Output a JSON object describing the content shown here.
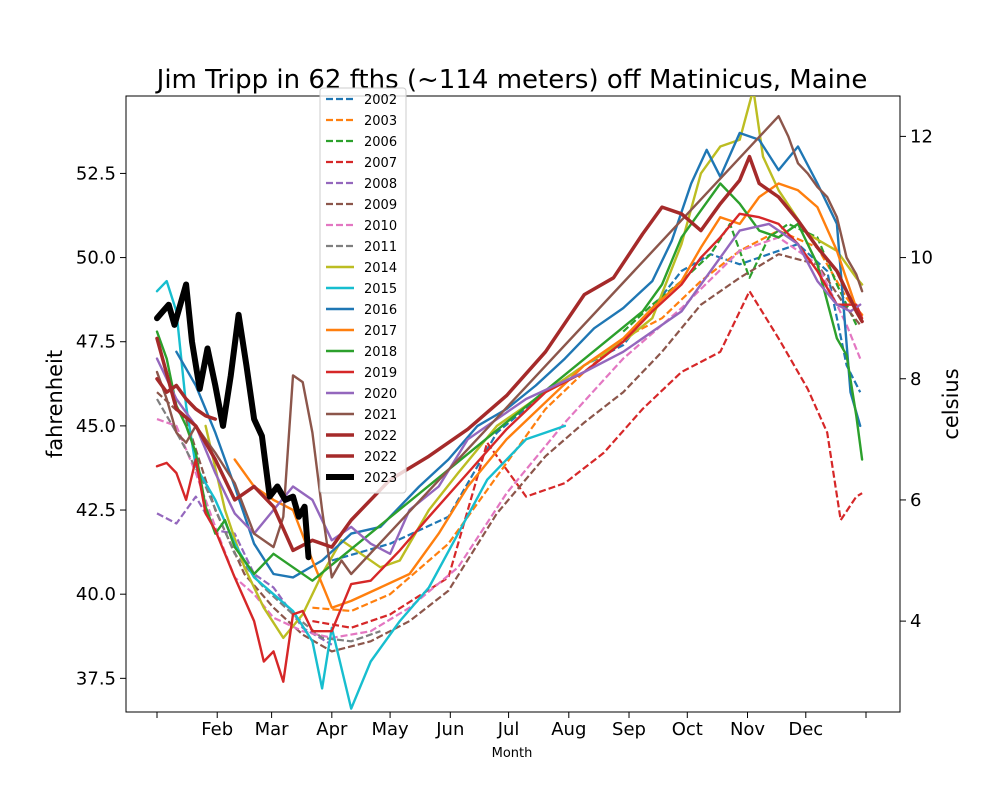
{
  "chart_data": {
    "type": "line",
    "title": "Jim Tripp in 62 fths (~114 meters) off Matinicus, Maine",
    "xlabel": "Month",
    "ylabel": "fahrenheit",
    "y2label": "celsius",
    "xlim": [
      0,
      365
    ],
    "ylim": [
      36.5,
      54.8
    ],
    "x_ticks": [
      {
        "pos": 0,
        "label": ""
      },
      {
        "pos": 31,
        "label": "Feb"
      },
      {
        "pos": 59,
        "label": "Mar"
      },
      {
        "pos": 90,
        "label": "Apr"
      },
      {
        "pos": 120,
        "label": "May"
      },
      {
        "pos": 151,
        "label": "Jun"
      },
      {
        "pos": 181,
        "label": "Jul"
      },
      {
        "pos": 212,
        "label": "Aug"
      },
      {
        "pos": 243,
        "label": "Sep"
      },
      {
        "pos": 273,
        "label": "Oct"
      },
      {
        "pos": 304,
        "label": "Nov"
      },
      {
        "pos": 334,
        "label": "Dec"
      },
      {
        "pos": 365,
        "label": ""
      }
    ],
    "y_ticks": [
      37.5,
      40.0,
      42.5,
      45.0,
      47.5,
      50.0,
      52.5
    ],
    "y2_ticks": [
      4,
      6,
      8,
      10,
      12
    ],
    "legend_position": "top-left",
    "series": [
      {
        "name": "2002",
        "style": "dashed",
        "color": "#1f77b4",
        "width": 2.2,
        "x": [
          90,
          120,
          150,
          175,
          200,
          220,
          240,
          255,
          270,
          285,
          300,
          315,
          330,
          345,
          355,
          362
        ],
        "y": [
          41.0,
          41.5,
          42.3,
          44.8,
          46.0,
          46.8,
          47.4,
          48.5,
          49.6,
          50.1,
          49.8,
          50.1,
          50.4,
          49.6,
          46.8,
          46.0
        ]
      },
      {
        "name": "2003",
        "style": "dashed",
        "color": "#ff7f0e",
        "width": 2.2,
        "x": [
          80,
          100,
          120,
          150,
          175,
          200,
          220,
          240,
          260,
          280,
          300,
          320,
          340,
          355,
          362
        ],
        "y": [
          39.6,
          39.5,
          40.0,
          41.5,
          43.5,
          45.5,
          46.6,
          47.6,
          48.2,
          49.3,
          50.2,
          50.8,
          50.3,
          48.8,
          48.3
        ]
      },
      {
        "name": "2006",
        "style": "dashed",
        "color": "#2ca02c",
        "width": 2.2,
        "x": [
          240,
          255,
          270,
          285,
          295,
          305,
          315,
          325,
          340,
          350,
          360
        ],
        "y": [
          47.8,
          48.6,
          49.3,
          50.1,
          51.0,
          49.4,
          50.6,
          51.0,
          50.6,
          49.2,
          48.0
        ]
      },
      {
        "name": "2007",
        "style": "dashed",
        "color": "#d62728",
        "width": 2.2,
        "x": [
          80,
          100,
          120,
          150,
          170,
          190,
          210,
          230,
          250,
          270,
          290,
          305,
          320,
          335,
          345,
          352,
          360,
          363
        ],
        "y": [
          39.2,
          39.0,
          39.4,
          40.5,
          44.5,
          42.9,
          43.3,
          44.2,
          45.5,
          46.6,
          47.2,
          49.0,
          47.6,
          46.1,
          44.8,
          42.2,
          42.9,
          43.0
        ]
      },
      {
        "name": "2008",
        "style": "dashed",
        "color": "#9467bd",
        "width": 2.2,
        "x": [
          0,
          10,
          20,
          30,
          40,
          50,
          60,
          75,
          90
        ],
        "y": [
          42.4,
          42.1,
          42.9,
          41.9,
          41.8,
          40.6,
          40.2,
          39.0,
          38.5
        ]
      },
      {
        "name": "2009",
        "style": "dashed",
        "color": "#8c564b",
        "width": 2.2,
        "x": [
          0,
          15,
          30,
          45,
          60,
          75,
          90,
          110,
          130,
          150,
          175,
          200,
          220,
          240,
          260,
          280,
          300,
          320,
          340,
          355,
          362
        ],
        "y": [
          46.0,
          45.2,
          42.5,
          40.6,
          39.6,
          38.8,
          38.3,
          38.6,
          39.2,
          40.1,
          42.4,
          44.1,
          45.1,
          46.0,
          47.2,
          48.6,
          49.4,
          50.1,
          49.8,
          48.5,
          48.0
        ]
      },
      {
        "name": "2010",
        "style": "dashed",
        "color": "#e377c2",
        "width": 2.2,
        "x": [
          0,
          10,
          20,
          30,
          40,
          50,
          60,
          75,
          90,
          110,
          130,
          155,
          180,
          210,
          240,
          270,
          300,
          320,
          340,
          355,
          362
        ],
        "y": [
          45.2,
          45.0,
          43.6,
          42.0,
          40.5,
          40.0,
          39.3,
          38.9,
          38.7,
          38.9,
          39.6,
          40.8,
          43.0,
          45.1,
          47.0,
          48.5,
          50.2,
          50.6,
          49.8,
          48.0,
          47.0
        ]
      },
      {
        "name": "2011",
        "style": "dashed",
        "color": "#7f7f7f",
        "width": 2.2,
        "x": [
          0,
          12,
          25,
          40,
          55,
          70,
          85,
          100,
          115
        ],
        "y": [
          45.8,
          44.6,
          43.2,
          41.2,
          40.2,
          39.4,
          38.7,
          38.6,
          38.9
        ]
      },
      {
        "name": "2014",
        "style": "solid",
        "color": "#bcbd22",
        "width": 2.4,
        "x": [
          25,
          35,
          45,
          55,
          65,
          75,
          85,
          95,
          105,
          115,
          125,
          140,
          155,
          175,
          200,
          220,
          240,
          255,
          270,
          280,
          290,
          300,
          307,
          312,
          320,
          335,
          350,
          360,
          363
        ],
        "y": [
          45.0,
          42.5,
          40.8,
          39.6,
          38.7,
          39.4,
          40.6,
          41.6,
          41.2,
          40.8,
          41.0,
          42.5,
          43.6,
          45.0,
          46.0,
          46.8,
          47.5,
          48.2,
          50.4,
          52.5,
          53.3,
          53.5,
          55.0,
          53.0,
          52.0,
          50.7,
          50.2,
          49.4,
          49.2
        ]
      },
      {
        "name": "2015",
        "style": "solid",
        "color": "#17becf",
        "width": 2.4,
        "x": [
          0,
          5,
          10,
          15,
          20,
          30,
          40,
          50,
          60,
          70,
          80,
          85,
          90,
          100,
          110,
          125,
          140,
          155,
          170,
          190,
          200,
          210
        ],
        "y": [
          49.0,
          49.3,
          48.4,
          45.6,
          43.8,
          42.8,
          41.5,
          40.5,
          40.0,
          39.5,
          38.6,
          37.2,
          39.0,
          36.6,
          38.0,
          39.2,
          40.2,
          41.8,
          43.4,
          44.6,
          44.8,
          45.0
        ]
      },
      {
        "name": "2016",
        "style": "solid",
        "color": "#1f77b4",
        "width": 2.4,
        "x": [
          10,
          20,
          30,
          40,
          50,
          60,
          70,
          85,
          100,
          115,
          135,
          150,
          165,
          180,
          195,
          210,
          225,
          240,
          255,
          265,
          275,
          283,
          290,
          300,
          310,
          320,
          330,
          340,
          350,
          357,
          362
        ],
        "y": [
          47.2,
          46.2,
          44.8,
          43.2,
          41.5,
          40.6,
          40.5,
          41.0,
          41.8,
          42.0,
          43.2,
          44.0,
          45.0,
          45.5,
          46.2,
          47.0,
          47.9,
          48.5,
          49.3,
          50.5,
          52.2,
          53.2,
          52.4,
          53.7,
          53.5,
          52.6,
          53.3,
          52.2,
          51.0,
          46.0,
          45.0
        ]
      },
      {
        "name": "2017",
        "style": "solid",
        "color": "#ff7f0e",
        "width": 2.4,
        "x": [
          40,
          50,
          60,
          70,
          80,
          90,
          100,
          115,
          130,
          145,
          160,
          180,
          200,
          220,
          240,
          255,
          270,
          280,
          290,
          300,
          310,
          320,
          330,
          340,
          350,
          360,
          363
        ],
        "y": [
          44.0,
          43.2,
          42.8,
          42.5,
          41.0,
          39.6,
          39.8,
          40.2,
          40.6,
          41.8,
          43.2,
          44.6,
          45.7,
          46.8,
          47.6,
          48.5,
          49.3,
          50.3,
          51.2,
          51.0,
          51.8,
          52.2,
          52.0,
          51.5,
          50.2,
          48.5,
          48.3
        ]
      },
      {
        "name": "2018",
        "style": "solid",
        "color": "#2ca02c",
        "width": 2.4,
        "x": [
          0,
          5,
          10,
          15,
          20,
          25,
          30,
          35,
          40,
          50,
          60,
          70,
          80,
          250,
          260,
          270,
          280,
          290,
          300,
          310,
          320,
          330,
          340,
          350,
          355,
          360,
          363
        ],
        "y": [
          47.8,
          47.0,
          45.6,
          45.0,
          44.2,
          42.6,
          41.8,
          42.2,
          41.4,
          40.6,
          41.2,
          40.8,
          40.4,
          48.4,
          49.2,
          50.6,
          51.4,
          52.2,
          51.6,
          50.8,
          50.6,
          51.0,
          49.8,
          47.6,
          47.1,
          45.3,
          44.0
        ]
      },
      {
        "name": "2019",
        "style": "solid",
        "color": "#d62728",
        "width": 2.4,
        "x": [
          0,
          5,
          10,
          15,
          20,
          25,
          30,
          35,
          40,
          50,
          55,
          60,
          65,
          70,
          75,
          80,
          90,
          100,
          110,
          125,
          140,
          160,
          180,
          200,
          220,
          240,
          255,
          270,
          280,
          290,
          300,
          310,
          320,
          330,
          340,
          350,
          360,
          363
        ],
        "y": [
          43.8,
          43.9,
          43.6,
          42.8,
          44.0,
          42.4,
          41.9,
          41.2,
          40.5,
          39.2,
          38.0,
          38.3,
          37.4,
          39.4,
          39.5,
          38.9,
          38.9,
          40.3,
          40.4,
          41.3,
          42.3,
          43.6,
          44.9,
          46.0,
          46.6,
          47.5,
          48.4,
          49.2,
          50.0,
          50.6,
          51.3,
          51.2,
          51.0,
          50.4,
          49.6,
          48.6,
          48.6,
          48.2
        ]
      },
      {
        "name": "2020",
        "style": "solid",
        "color": "#9467bd",
        "width": 2.4,
        "x": [
          0,
          10,
          20,
          30,
          40,
          50,
          60,
          70,
          80,
          90,
          100,
          110,
          120,
          130,
          145,
          160,
          175,
          190,
          205,
          220,
          240,
          255,
          270,
          285,
          300,
          315,
          330,
          340,
          350,
          357,
          362
        ],
        "y": [
          47.0,
          45.8,
          45.0,
          43.6,
          42.4,
          41.8,
          42.5,
          43.2,
          42.8,
          41.6,
          42.0,
          41.5,
          41.2,
          42.5,
          43.2,
          44.6,
          45.2,
          45.8,
          46.2,
          46.6,
          47.2,
          47.8,
          48.4,
          49.6,
          50.8,
          51.0,
          50.4,
          49.3,
          48.6,
          48.4,
          48.6
        ]
      },
      {
        "name": "2021",
        "style": "solid",
        "color": "#8c564b",
        "width": 2.4,
        "x": [
          0,
          5,
          10,
          15,
          20,
          30,
          40,
          50,
          60,
          65,
          70,
          75,
          80,
          85,
          90,
          95,
          100,
          320,
          325,
          330,
          335,
          340,
          345,
          350,
          355,
          360,
          363
        ],
        "y": [
          46.6,
          45.8,
          44.8,
          44.5,
          45.0,
          44.2,
          43.3,
          41.8,
          41.4,
          42.3,
          46.5,
          46.3,
          44.8,
          42.5,
          40.5,
          41.0,
          40.6,
          54.2,
          53.6,
          52.8,
          52.5,
          52.1,
          51.8,
          51.2,
          50.0,
          49.5,
          49.0
        ]
      },
      {
        "name": "2022",
        "style": "solid",
        "color": "#a52a2a",
        "width": 3.5,
        "x": [
          0,
          10,
          20,
          30,
          40,
          50,
          60,
          70,
          80,
          90,
          100,
          120,
          140,
          160,
          180,
          200,
          220,
          235,
          250,
          260,
          270,
          280,
          290,
          300,
          305,
          310,
          320,
          330,
          340,
          350,
          360,
          363
        ],
        "y": [
          47.6,
          45.5,
          45.0,
          44.0,
          42.8,
          43.2,
          42.6,
          41.3,
          41.6,
          41.4,
          42.2,
          43.4,
          44.1,
          44.9,
          45.9,
          47.2,
          48.9,
          49.4,
          50.7,
          51.5,
          51.3,
          50.8,
          51.6,
          52.3,
          53.0,
          52.2,
          51.8,
          51.1,
          50.3,
          49.6,
          48.4,
          48.1
        ]
      },
      {
        "name": "2022",
        "style": "solid",
        "color": "#a52a2a",
        "width": 3.5,
        "x": [
          0,
          5,
          10,
          15,
          20,
          25,
          30
        ],
        "y": [
          46.4,
          46.0,
          46.2,
          45.8,
          45.5,
          45.3,
          45.2
        ]
      },
      {
        "name": "2023",
        "style": "solid",
        "color": "#000000",
        "width": 6,
        "x": [
          0,
          3,
          6,
          9,
          12,
          15,
          18,
          22,
          26,
          30,
          34,
          38,
          42,
          46,
          50,
          54,
          58,
          62,
          66,
          70,
          73,
          76,
          78
        ],
        "y": [
          48.2,
          48.4,
          48.6,
          48.0,
          48.6,
          49.2,
          47.5,
          46.1,
          47.3,
          46.2,
          45.0,
          46.5,
          48.3,
          46.8,
          45.2,
          44.7,
          42.9,
          43.2,
          42.8,
          42.9,
          42.3,
          42.6,
          41.1
        ]
      }
    ]
  }
}
